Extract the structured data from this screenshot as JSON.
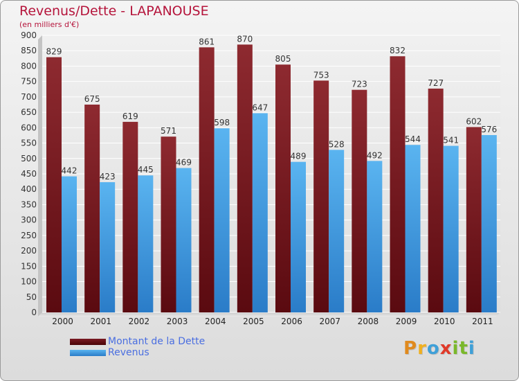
{
  "chart_data": {
    "type": "bar",
    "title": "Revenus/Dette - LAPANOUSE",
    "subtitle": "(en milliers d'€)",
    "categories": [
      "2000",
      "2001",
      "2002",
      "2003",
      "2004",
      "2005",
      "2006",
      "2007",
      "2008",
      "2009",
      "2010",
      "2011"
    ],
    "series": [
      {
        "name": "Montant de la Dette",
        "values": [
          829,
          675,
          619,
          571,
          861,
          870,
          805,
          753,
          723,
          832,
          727,
          602
        ],
        "color": "#7a1a22"
      },
      {
        "name": "Revenus",
        "values": [
          442,
          423,
          445,
          469,
          598,
          647,
          489,
          528,
          492,
          544,
          541,
          576
        ],
        "color": "#4aa3e8"
      }
    ],
    "ylim": [
      0,
      900
    ],
    "yticks": [
      0,
      50,
      100,
      150,
      200,
      250,
      300,
      350,
      400,
      450,
      500,
      550,
      600,
      650,
      700,
      750,
      800,
      850,
      900
    ],
    "grid": true,
    "legend": "bottom-left"
  },
  "logo": {
    "letters": [
      "P",
      "r",
      "o",
      "x",
      "i",
      "t",
      "i"
    ],
    "colors": [
      "#e08a1e",
      "#f0b020",
      "#3fa0d8",
      "#e03a2a",
      "#7ab82a",
      "#7ab82a",
      "#3fa0d8"
    ]
  }
}
